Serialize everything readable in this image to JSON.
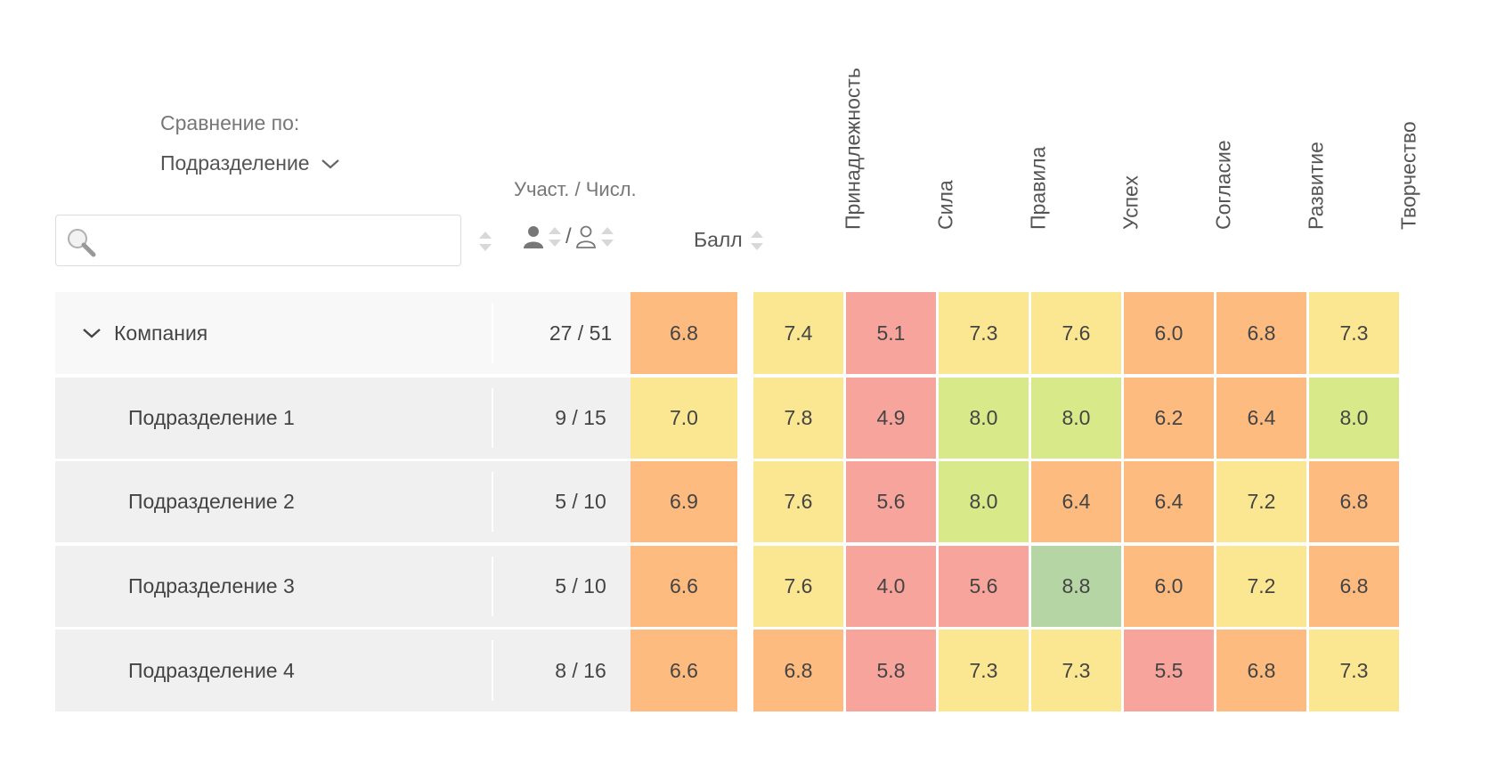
{
  "compare": {
    "label": "Сравнение по:",
    "value": "Подразделение"
  },
  "search": {
    "placeholder": "",
    "value": ""
  },
  "headers": {
    "counts_label": "Участ. / Числ.",
    "counts_separator": "/",
    "score": "Балл",
    "factors": [
      "Принадлежность",
      "Сила",
      "Правила",
      "Успех",
      "Согласие",
      "Развитие",
      "Творчество"
    ]
  },
  "colors": {
    "red": "#f7a59c",
    "orange": "#fdbb80",
    "yellow": "#fbe792",
    "lightgreen": "#d8e98a",
    "green": "#b5d6a4"
  },
  "rows": [
    {
      "name": "Компания",
      "counts": "27 / 51",
      "score": "6.8",
      "score_color": "orange",
      "values": [
        "7.4",
        "5.1",
        "7.3",
        "7.6",
        "6.0",
        "6.8",
        "7.3"
      ],
      "colors": [
        "yellow",
        "red",
        "yellow",
        "yellow",
        "orange",
        "orange",
        "yellow"
      ]
    },
    {
      "name": "Подразделение 1",
      "counts": "9 / 15",
      "score": "7.0",
      "score_color": "yellow",
      "values": [
        "7.8",
        "4.9",
        "8.0",
        "8.0",
        "6.2",
        "6.4",
        "8.0"
      ],
      "colors": [
        "yellow",
        "red",
        "lightgreen",
        "lightgreen",
        "orange",
        "orange",
        "lightgreen"
      ]
    },
    {
      "name": "Подразделение 2",
      "counts": "5 / 10",
      "score": "6.9",
      "score_color": "orange",
      "values": [
        "7.6",
        "5.6",
        "8.0",
        "6.4",
        "6.4",
        "7.2",
        "6.8"
      ],
      "colors": [
        "yellow",
        "red",
        "lightgreen",
        "orange",
        "orange",
        "yellow",
        "orange"
      ]
    },
    {
      "name": "Подразделение 3",
      "counts": "5 / 10",
      "score": "6.6",
      "score_color": "orange",
      "values": [
        "7.6",
        "4.0",
        "5.6",
        "8.8",
        "6.0",
        "7.2",
        "6.8"
      ],
      "colors": [
        "yellow",
        "red",
        "red",
        "green",
        "orange",
        "yellow",
        "orange"
      ]
    },
    {
      "name": "Подразделение 4",
      "counts": "8 / 16",
      "score": "6.6",
      "score_color": "orange",
      "values": [
        "6.8",
        "5.8",
        "7.3",
        "7.3",
        "5.5",
        "6.8",
        "7.3"
      ],
      "colors": [
        "orange",
        "red",
        "yellow",
        "yellow",
        "red",
        "orange",
        "yellow"
      ]
    }
  ]
}
